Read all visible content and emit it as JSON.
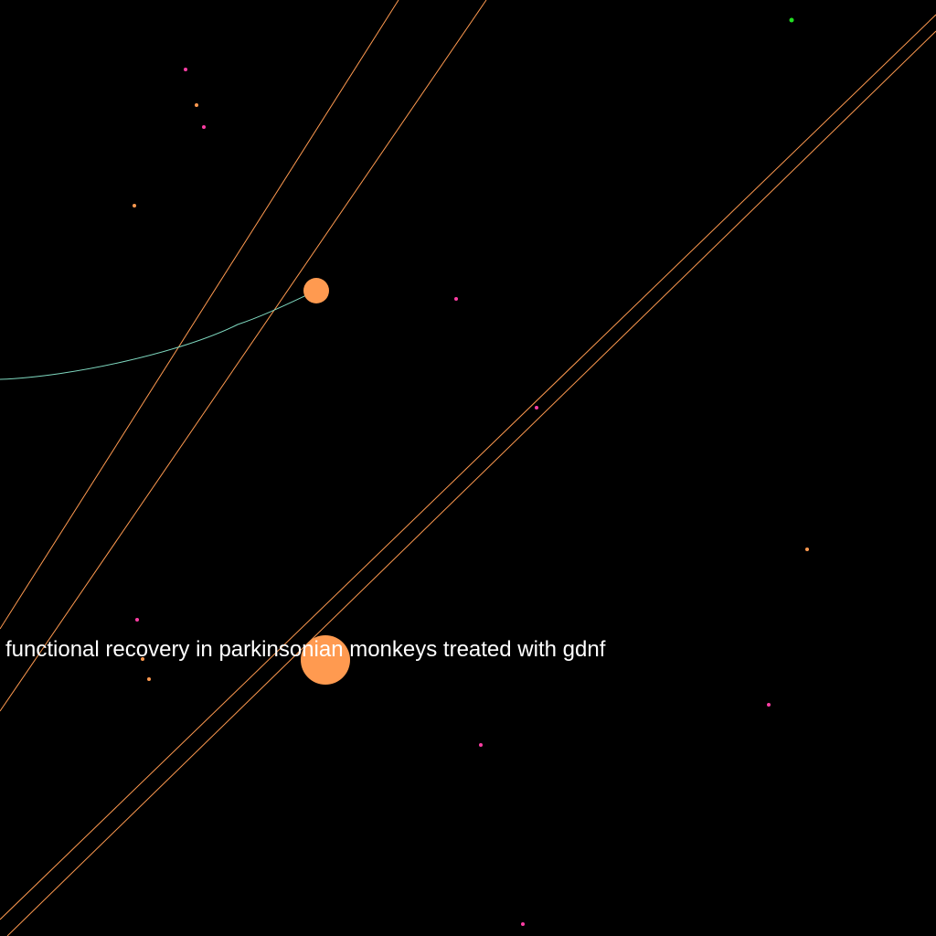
{
  "background_color": "#000000",
  "colors": {
    "edge_orange": "#ff9a50",
    "edge_teal": "#7fd9c0",
    "node_orange": "#ff9a50",
    "node_pink": "#ff3ea5",
    "node_green": "#22dd22",
    "label_text": "#ffffff"
  },
  "labels": {
    "main_node_label": "functional recovery in parkinsonian monkeys treated with gdnf"
  }
}
